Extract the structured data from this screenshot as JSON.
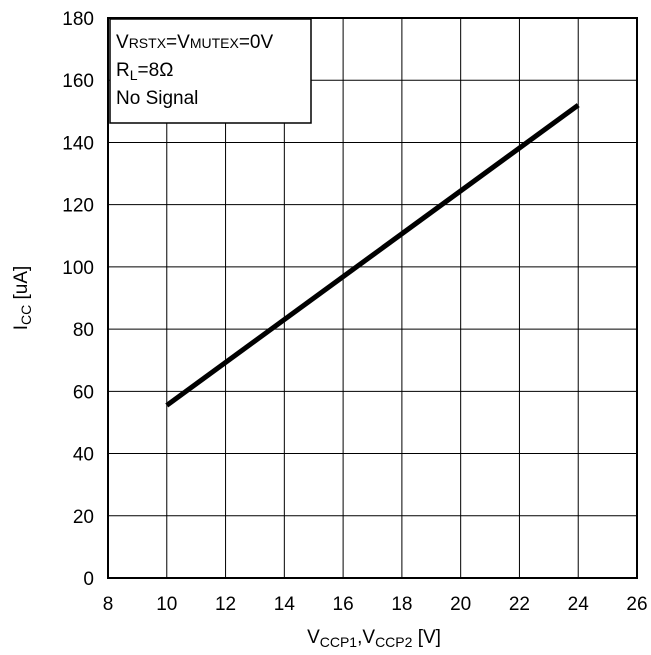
{
  "chart_data": {
    "type": "line",
    "title": "",
    "xlabel": {
      "main": "V",
      "sub1": "CCP1",
      "sep": ",V",
      "sub2": "CCP2",
      "unit": " [V]"
    },
    "ylabel": {
      "main": "I",
      "sub": "CC",
      "unit": " [uA]"
    },
    "xlim": [
      8,
      26
    ],
    "ylim": [
      0,
      180
    ],
    "xticks": [
      8,
      10,
      12,
      14,
      16,
      18,
      20,
      22,
      24,
      26
    ],
    "yticks": [
      0,
      20,
      40,
      60,
      80,
      100,
      120,
      140,
      160,
      180
    ],
    "grid": true,
    "legend": "none",
    "series": [
      {
        "x": [
          10,
          24
        ],
        "y": [
          55.5,
          152
        ],
        "color": "#000000"
      }
    ],
    "annotations": {
      "line1": {
        "a": "V",
        "b": "RSTX",
        "c": "=V",
        "d": "MUTEX",
        "e": "=0V"
      },
      "line2": {
        "a": "R",
        "b": "L",
        "c": "=8Ω"
      },
      "line3": "No Signal"
    }
  }
}
